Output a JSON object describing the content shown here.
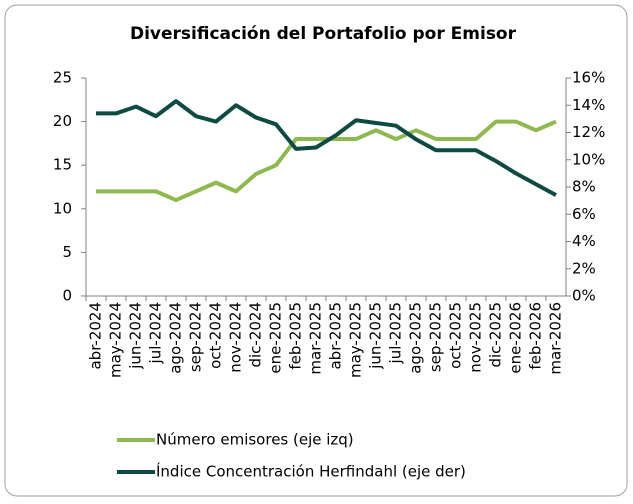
{
  "chart_data": {
    "type": "line",
    "title": "Diversificación del Portafolio por Emisor",
    "categories": [
      "abr-2024",
      "may-2024",
      "jun-2024",
      "jul-2024",
      "ago-2024",
      "sep-2024",
      "oct-2024",
      "nov-2024",
      "dic-2024",
      "ene-2025",
      "feb-2025",
      "mar-2025",
      "abr-2025",
      "may-2025",
      "jun-2025",
      "jul-2025",
      "ago-2025",
      "sep-2025",
      "oct-2025",
      "nov-2025",
      "dic-2025",
      "ene-2026",
      "feb-2026",
      "mar-2026"
    ],
    "series": [
      {
        "name": "Número emisores (eje izq)",
        "color": "#8db94e",
        "axis": "y",
        "values": [
          12,
          12,
          12,
          12,
          11,
          12,
          13,
          12,
          14,
          15,
          18,
          18,
          18,
          18,
          19,
          18,
          19,
          18,
          18,
          18,
          20,
          20,
          19,
          20
        ]
      },
      {
        "name": "Índice Concentración Herfindahl (eje der)",
        "color": "#0d4a42",
        "axis": "y2",
        "values": [
          13.4,
          13.4,
          13.9,
          13.2,
          14.3,
          13.2,
          12.8,
          14.0,
          13.1,
          12.6,
          10.8,
          10.9,
          11.8,
          12.9,
          12.7,
          12.5,
          11.5,
          10.7,
          10.7,
          10.7,
          9.9,
          9.0,
          8.2,
          7.4
        ]
      }
    ],
    "ylim": [
      0,
      25
    ],
    "yticks": [
      0,
      5,
      10,
      15,
      20,
      25
    ],
    "y2lim": [
      0,
      16
    ],
    "y2ticks": [
      {
        "value": 0,
        "label": "0%"
      },
      {
        "value": 2,
        "label": "2%"
      },
      {
        "value": 4,
        "label": "4%"
      },
      {
        "value": 6,
        "label": "6%"
      },
      {
        "value": 8,
        "label": "8%"
      },
      {
        "value": 10,
        "label": "10%"
      },
      {
        "value": 12,
        "label": "12%"
      },
      {
        "value": 14,
        "label": "14%"
      },
      {
        "value": 16,
        "label": "16%"
      }
    ],
    "grid": false,
    "legend": "bottom"
  }
}
